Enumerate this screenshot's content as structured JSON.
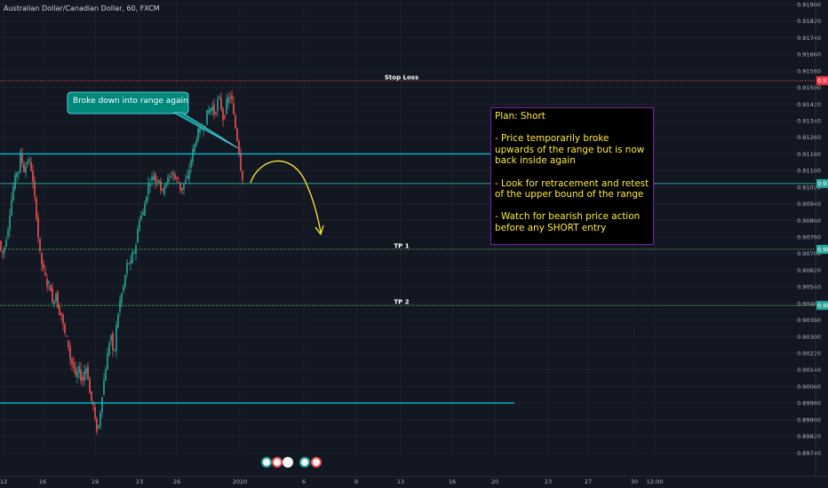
{
  "header": {
    "symbol": "Australian Dollar/Canadian Dollar, 60, FXCM"
  },
  "chart_data": {
    "type": "candlestick",
    "ylim": [
      0.8972,
      0.919
    ],
    "y_ticks": [
      "0.91900",
      "0.91820",
      "0.91740",
      "0.91660",
      "0.91580",
      "0.91500",
      "0.91420",
      "0.91340",
      "0.91260",
      "0.91180",
      "0.91100",
      "0.91020",
      "0.90940",
      "0.90860",
      "0.90780",
      "0.90700",
      "0.90620",
      "0.90540",
      "0.90460",
      "0.90380",
      "0.90300",
      "0.90220",
      "0.90140",
      "0.90060",
      "0.89980",
      "0.89900",
      "0.89820",
      "0.89740"
    ],
    "x_ticks": [
      "12",
      "16",
      "19",
      "23",
      "26",
      "2020",
      "6",
      "9",
      "13",
      "16",
      "20",
      "23",
      "27",
      "30",
      "12:00"
    ],
    "price_labels": [
      {
        "name": "stop-loss",
        "text": "0.91533",
        "value": 0.91533,
        "color": "#f23645"
      },
      {
        "name": "current",
        "text": "0.91037",
        "value": 0.91037,
        "color": "#26a69a"
      },
      {
        "name": "tp1",
        "text": "0.90720",
        "value": 0.9072,
        "color": "#26a69a"
      },
      {
        "name": "tp2",
        "text": "0.90450",
        "value": 0.9045,
        "color": "#26a69a"
      }
    ],
    "levels": [
      {
        "name": "stop-loss",
        "label": "Stop Loss",
        "value": 0.91533,
        "color": "#f23645",
        "style": "dotted"
      },
      {
        "name": "tp1",
        "label": "TP 1",
        "value": 0.9072,
        "color": "#4caf50",
        "style": "dotted"
      },
      {
        "name": "tp2",
        "label": "TP 2",
        "value": 0.9045,
        "color": "#4caf50",
        "style": "dotted"
      },
      {
        "name": "current-price",
        "label": "",
        "value": 0.91037,
        "color": "#26a69a",
        "style": "solid"
      }
    ],
    "range_lines": [
      {
        "name": "range-upper",
        "value": 0.9118,
        "color": "#00bcd4"
      },
      {
        "name": "range-lower",
        "value": 0.8998,
        "color": "#00bcd4"
      }
    ],
    "price_path": [
      [
        0,
        0.9076
      ],
      [
        3,
        0.9069
      ],
      [
        6,
        0.9073
      ],
      [
        10,
        0.9082
      ],
      [
        13,
        0.9093
      ],
      [
        16,
        0.9102
      ],
      [
        19,
        0.9109
      ],
      [
        22,
        0.911
      ],
      [
        24,
        0.9118
      ],
      [
        26,
        0.9114
      ],
      [
        28,
        0.911
      ],
      [
        30,
        0.9112
      ],
      [
        33,
        0.9116
      ],
      [
        35,
        0.9113
      ],
      [
        37,
        0.9108
      ],
      [
        39,
        0.91
      ],
      [
        41,
        0.9093
      ],
      [
        43,
        0.9083
      ],
      [
        45,
        0.9073
      ],
      [
        47,
        0.9067
      ],
      [
        49,
        0.9063
      ],
      [
        51,
        0.9061
      ],
      [
        53,
        0.9057
      ],
      [
        55,
        0.9053
      ],
      [
        57,
        0.9058
      ],
      [
        59,
        0.9048
      ],
      [
        61,
        0.9043
      ],
      [
        63,
        0.9053
      ],
      [
        65,
        0.9049
      ],
      [
        67,
        0.904
      ],
      [
        69,
        0.9043
      ],
      [
        71,
        0.9038
      ],
      [
        73,
        0.9033
      ],
      [
        75,
        0.903
      ],
      [
        77,
        0.9028
      ],
      [
        79,
        0.9023
      ],
      [
        81,
        0.9016
      ],
      [
        83,
        0.9018
      ],
      [
        85,
        0.9012
      ],
      [
        87,
        0.9009
      ],
      [
        89,
        0.9016
      ],
      [
        91,
        0.9013
      ],
      [
        93,
        0.9007
      ],
      [
        95,
        0.9011
      ],
      [
        97,
        0.9016
      ],
      [
        99,
        0.9014
      ],
      [
        101,
        0.9007
      ],
      [
        103,
        0.8998
      ],
      [
        105,
        0.9
      ],
      [
        107,
        0.8993
      ],
      [
        109,
        0.8986
      ],
      [
        111,
        0.8984
      ],
      [
        113,
        0.899
      ],
      [
        115,
        0.8998
      ],
      [
        117,
        0.9006
      ],
      [
        119,
        0.9012
      ],
      [
        121,
        0.9018
      ],
      [
        123,
        0.9024
      ],
      [
        125,
        0.9031
      ],
      [
        127,
        0.903
      ],
      [
        129,
        0.9015
      ],
      [
        131,
        0.9033
      ],
      [
        133,
        0.9037
      ],
      [
        135,
        0.9045
      ],
      [
        137,
        0.9049
      ],
      [
        139,
        0.9052
      ],
      [
        141,
        0.9056
      ],
      [
        143,
        0.9063
      ],
      [
        145,
        0.9067
      ],
      [
        147,
        0.9064
      ],
      [
        149,
        0.9067
      ],
      [
        151,
        0.9072
      ],
      [
        153,
        0.907
      ],
      [
        155,
        0.9079
      ],
      [
        157,
        0.9084
      ],
      [
        159,
        0.909
      ],
      [
        161,
        0.9087
      ],
      [
        163,
        0.9092
      ],
      [
        165,
        0.9096
      ],
      [
        167,
        0.9101
      ],
      [
        169,
        0.9106
      ],
      [
        171,
        0.9103
      ],
      [
        173,
        0.911
      ],
      [
        175,
        0.9106
      ],
      [
        177,
        0.9103
      ],
      [
        179,
        0.9108
      ],
      [
        181,
        0.9104
      ],
      [
        183,
        0.9098
      ],
      [
        185,
        0.9101
      ],
      [
        187,
        0.9106
      ],
      [
        189,
        0.9103
      ],
      [
        191,
        0.9109
      ],
      [
        193,
        0.9105
      ],
      [
        195,
        0.911
      ],
      [
        197,
        0.9108
      ],
      [
        199,
        0.9104
      ],
      [
        201,
        0.9107
      ],
      [
        203,
        0.9102
      ],
      [
        205,
        0.91
      ],
      [
        207,
        0.9102
      ],
      [
        209,
        0.9106
      ],
      [
        211,
        0.9104
      ],
      [
        213,
        0.9109
      ],
      [
        215,
        0.9112
      ],
      [
        217,
        0.9118
      ],
      [
        219,
        0.9121
      ],
      [
        221,
        0.9124
      ],
      [
        223,
        0.9127
      ],
      [
        225,
        0.9131
      ],
      [
        227,
        0.9128
      ],
      [
        229,
        0.9133
      ],
      [
        231,
        0.9129
      ],
      [
        233,
        0.9136
      ],
      [
        235,
        0.914
      ],
      [
        237,
        0.9138
      ],
      [
        239,
        0.9142
      ],
      [
        241,
        0.9139
      ],
      [
        243,
        0.9136
      ],
      [
        245,
        0.9141
      ],
      [
        247,
        0.9146
      ],
      [
        249,
        0.9143
      ],
      [
        251,
        0.9137
      ],
      [
        253,
        0.9133
      ],
      [
        255,
        0.914
      ],
      [
        257,
        0.9146
      ],
      [
        259,
        0.9144
      ],
      [
        261,
        0.9147
      ],
      [
        263,
        0.914
      ],
      [
        265,
        0.9133
      ],
      [
        267,
        0.9128
      ],
      [
        269,
        0.9122
      ],
      [
        271,
        0.9116
      ],
      [
        273,
        0.9106
      ]
    ]
  },
  "annotations": {
    "callout": "Broke down into range again",
    "plan_lines": [
      "Plan: Short",
      "",
      "- Price temporarily broke",
      "upwards of the range but is now",
      "back inside again",
      "",
      "- Look for retracement and retest",
      "of the upper bound of the range",
      "",
      "- Watch for bearish price action",
      "before any SHORT entry"
    ]
  },
  "colors": {
    "background": "#131722",
    "bull": "#26a69a",
    "bear": "#ef5350",
    "grid": "#1e222d"
  }
}
